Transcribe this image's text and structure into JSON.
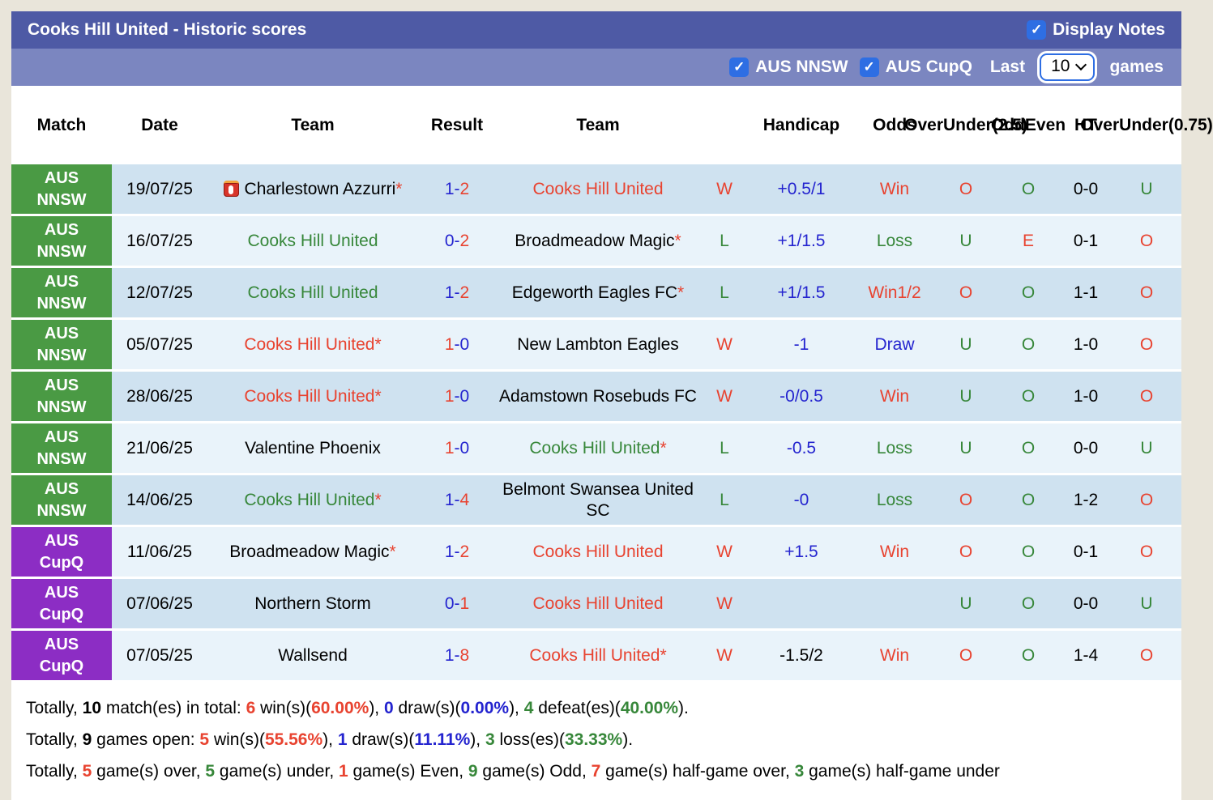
{
  "header": {
    "title": "Cooks Hill United - Historic scores",
    "display_notes_label": "Display Notes",
    "display_notes_checked": true
  },
  "filter": {
    "aus_nnsw_label": "AUS NNSW",
    "aus_nnsw_checked": true,
    "aus_cupq_label": "AUS CupQ",
    "aus_cupq_checked": true,
    "last_label": "Last",
    "games_label": "games",
    "selected_games": "10"
  },
  "colors": {
    "red": "#e84330",
    "green": "#37873a",
    "blue": "#2424cf",
    "badge_green": "#4a9a44",
    "badge_purple": "#8c2dc4",
    "stripe_dark": "#cfe2f0",
    "stripe_light": "#e9f3fa"
  },
  "columns": [
    {
      "lines": [
        "Match"
      ]
    },
    {
      "lines": [
        "Date"
      ]
    },
    {
      "lines": [
        "Team"
      ]
    },
    {
      "lines": [
        "Result"
      ]
    },
    {
      "lines": [
        "Team"
      ]
    },
    {
      "lines": [
        ""
      ]
    },
    {
      "lines": [
        "Handicap"
      ]
    },
    {
      "lines": [
        "Odds"
      ]
    },
    {
      "lines": [
        "Over",
        "Under",
        "(2.5)"
      ]
    },
    {
      "lines": [
        "Odd",
        "Even"
      ]
    },
    {
      "lines": [
        "HT"
      ]
    },
    {
      "lines": [
        "Over",
        "Under",
        "(0.75)"
      ]
    }
  ],
  "rows": [
    {
      "league": "AUS NNSW",
      "league_color": "green",
      "date": "19/07/25",
      "home": {
        "name": "Charlestown Azzurri",
        "star": true,
        "color": "black",
        "icon": "red-card"
      },
      "result": {
        "home": "1",
        "away": "2",
        "home_color": "blue",
        "away_color": "red"
      },
      "away": {
        "name": "Cooks Hill United",
        "star": false,
        "color": "red"
      },
      "wl": {
        "text": "W",
        "color": "red"
      },
      "handicap": {
        "text": "+0.5/1",
        "color": "blue"
      },
      "odds": {
        "text": "Win",
        "color": "red"
      },
      "ou25": {
        "text": "O",
        "color": "red"
      },
      "oddeven": {
        "text": "O",
        "color": "green"
      },
      "ht": "0-0",
      "ou075": {
        "text": "U",
        "color": "green"
      }
    },
    {
      "league": "AUS NNSW",
      "league_color": "green",
      "date": "16/07/25",
      "home": {
        "name": "Cooks Hill United",
        "star": false,
        "color": "green"
      },
      "result": {
        "home": "0",
        "away": "2",
        "home_color": "blue",
        "away_color": "red"
      },
      "away": {
        "name": "Broadmeadow Magic",
        "star": true,
        "color": "black"
      },
      "wl": {
        "text": "L",
        "color": "green"
      },
      "handicap": {
        "text": "+1/1.5",
        "color": "blue"
      },
      "odds": {
        "text": "Loss",
        "color": "green"
      },
      "ou25": {
        "text": "U",
        "color": "green"
      },
      "oddeven": {
        "text": "E",
        "color": "red"
      },
      "ht": "0-1",
      "ou075": {
        "text": "O",
        "color": "red"
      }
    },
    {
      "league": "AUS NNSW",
      "league_color": "green",
      "date": "12/07/25",
      "home": {
        "name": "Cooks Hill United",
        "star": false,
        "color": "green"
      },
      "result": {
        "home": "1",
        "away": "2",
        "home_color": "blue",
        "away_color": "red"
      },
      "away": {
        "name": "Edgeworth Eagles FC",
        "star": true,
        "color": "black"
      },
      "wl": {
        "text": "L",
        "color": "green"
      },
      "handicap": {
        "text": "+1/1.5",
        "color": "blue"
      },
      "odds": {
        "text": "Win1/2",
        "color": "red"
      },
      "ou25": {
        "text": "O",
        "color": "red"
      },
      "oddeven": {
        "text": "O",
        "color": "green"
      },
      "ht": "1-1",
      "ou075": {
        "text": "O",
        "color": "red"
      }
    },
    {
      "league": "AUS NNSW",
      "league_color": "green",
      "date": "05/07/25",
      "home": {
        "name": "Cooks Hill United",
        "star": true,
        "color": "red"
      },
      "result": {
        "home": "1",
        "away": "0",
        "home_color": "red",
        "away_color": "blue"
      },
      "away": {
        "name": "New Lambton Eagles",
        "star": false,
        "color": "black"
      },
      "wl": {
        "text": "W",
        "color": "red"
      },
      "handicap": {
        "text": "-1",
        "color": "blue"
      },
      "odds": {
        "text": "Draw",
        "color": "blue"
      },
      "ou25": {
        "text": "U",
        "color": "green"
      },
      "oddeven": {
        "text": "O",
        "color": "green"
      },
      "ht": "1-0",
      "ou075": {
        "text": "O",
        "color": "red"
      }
    },
    {
      "league": "AUS NNSW",
      "league_color": "green",
      "date": "28/06/25",
      "home": {
        "name": "Cooks Hill United",
        "star": true,
        "color": "red"
      },
      "result": {
        "home": "1",
        "away": "0",
        "home_color": "red",
        "away_color": "blue"
      },
      "away": {
        "name": "Adamstown Rosebuds FC",
        "star": false,
        "color": "black"
      },
      "wl": {
        "text": "W",
        "color": "red"
      },
      "handicap": {
        "text": "-0/0.5",
        "color": "blue"
      },
      "odds": {
        "text": "Win",
        "color": "red"
      },
      "ou25": {
        "text": "U",
        "color": "green"
      },
      "oddeven": {
        "text": "O",
        "color": "green"
      },
      "ht": "1-0",
      "ou075": {
        "text": "O",
        "color": "red"
      }
    },
    {
      "league": "AUS NNSW",
      "league_color": "green",
      "date": "21/06/25",
      "home": {
        "name": "Valentine Phoenix",
        "star": false,
        "color": "black"
      },
      "result": {
        "home": "1",
        "away": "0",
        "home_color": "red",
        "away_color": "blue"
      },
      "away": {
        "name": "Cooks Hill United",
        "star": true,
        "color": "green"
      },
      "wl": {
        "text": "L",
        "color": "green"
      },
      "handicap": {
        "text": "-0.5",
        "color": "blue"
      },
      "odds": {
        "text": "Loss",
        "color": "green"
      },
      "ou25": {
        "text": "U",
        "color": "green"
      },
      "oddeven": {
        "text": "O",
        "color": "green"
      },
      "ht": "0-0",
      "ou075": {
        "text": "U",
        "color": "green"
      }
    },
    {
      "league": "AUS NNSW",
      "league_color": "green",
      "date": "14/06/25",
      "home": {
        "name": "Cooks Hill United",
        "star": true,
        "color": "green"
      },
      "result": {
        "home": "1",
        "away": "4",
        "home_color": "blue",
        "away_color": "red"
      },
      "away": {
        "name": "Belmont Swansea United SC",
        "star": false,
        "color": "black"
      },
      "wl": {
        "text": "L",
        "color": "green"
      },
      "handicap": {
        "text": "-0",
        "color": "blue"
      },
      "odds": {
        "text": "Loss",
        "color": "green"
      },
      "ou25": {
        "text": "O",
        "color": "red"
      },
      "oddeven": {
        "text": "O",
        "color": "green"
      },
      "ht": "1-2",
      "ou075": {
        "text": "O",
        "color": "red"
      }
    },
    {
      "league": "AUS CupQ",
      "league_color": "purple",
      "date": "11/06/25",
      "home": {
        "name": "Broadmeadow Magic",
        "star": true,
        "color": "black"
      },
      "result": {
        "home": "1",
        "away": "2",
        "home_color": "blue",
        "away_color": "red"
      },
      "away": {
        "name": "Cooks Hill United",
        "star": false,
        "color": "red"
      },
      "wl": {
        "text": "W",
        "color": "red"
      },
      "handicap": {
        "text": "+1.5",
        "color": "blue"
      },
      "odds": {
        "text": "Win",
        "color": "red"
      },
      "ou25": {
        "text": "O",
        "color": "red"
      },
      "oddeven": {
        "text": "O",
        "color": "green"
      },
      "ht": "0-1",
      "ou075": {
        "text": "O",
        "color": "red"
      }
    },
    {
      "league": "AUS CupQ",
      "league_color": "purple",
      "date": "07/06/25",
      "home": {
        "name": "Northern Storm",
        "star": false,
        "color": "black"
      },
      "result": {
        "home": "0",
        "away": "1",
        "home_color": "blue",
        "away_color": "red"
      },
      "away": {
        "name": "Cooks Hill United",
        "star": false,
        "color": "red"
      },
      "wl": {
        "text": "W",
        "color": "red"
      },
      "handicap": {
        "text": "",
        "color": "black"
      },
      "odds": {
        "text": "",
        "color": "black"
      },
      "ou25": {
        "text": "U",
        "color": "green"
      },
      "oddeven": {
        "text": "O",
        "color": "green"
      },
      "ht": "0-0",
      "ou075": {
        "text": "U",
        "color": "green"
      }
    },
    {
      "league": "AUS CupQ",
      "league_color": "purple",
      "date": "07/05/25",
      "home": {
        "name": "Wallsend",
        "star": false,
        "color": "black"
      },
      "result": {
        "home": "1",
        "away": "8",
        "home_color": "blue",
        "away_color": "red"
      },
      "away": {
        "name": "Cooks Hill United",
        "star": true,
        "color": "red"
      },
      "wl": {
        "text": "W",
        "color": "red"
      },
      "handicap": {
        "text": "-1.5/2",
        "color": "black"
      },
      "odds": {
        "text": "Win",
        "color": "red"
      },
      "ou25": {
        "text": "O",
        "color": "red"
      },
      "oddeven": {
        "text": "O",
        "color": "green"
      },
      "ht": "1-4",
      "ou075": {
        "text": "O",
        "color": "red"
      }
    }
  ],
  "summary": [
    [
      {
        "t": "Totally, "
      },
      {
        "t": "10",
        "b": true
      },
      {
        "t": " match(es) in total: "
      },
      {
        "t": "6",
        "b": true,
        "c": "red"
      },
      {
        "t": " win(s)("
      },
      {
        "t": "60.00%",
        "b": true,
        "c": "red"
      },
      {
        "t": "), "
      },
      {
        "t": "0",
        "b": true,
        "c": "blue"
      },
      {
        "t": " draw(s)("
      },
      {
        "t": "0.00%",
        "b": true,
        "c": "blue"
      },
      {
        "t": "), "
      },
      {
        "t": "4",
        "b": true,
        "c": "green"
      },
      {
        "t": " defeat(es)("
      },
      {
        "t": "40.00%",
        "b": true,
        "c": "green"
      },
      {
        "t": ")."
      }
    ],
    [
      {
        "t": "Totally, "
      },
      {
        "t": "9",
        "b": true
      },
      {
        "t": " games open: "
      },
      {
        "t": "5",
        "b": true,
        "c": "red"
      },
      {
        "t": " win(s)("
      },
      {
        "t": "55.56%",
        "b": true,
        "c": "red"
      },
      {
        "t": "), "
      },
      {
        "t": "1",
        "b": true,
        "c": "blue"
      },
      {
        "t": " draw(s)("
      },
      {
        "t": "11.11%",
        "b": true,
        "c": "blue"
      },
      {
        "t": "), "
      },
      {
        "t": "3",
        "b": true,
        "c": "green"
      },
      {
        "t": " loss(es)("
      },
      {
        "t": "33.33%",
        "b": true,
        "c": "green"
      },
      {
        "t": ")."
      }
    ],
    [
      {
        "t": "Totally, "
      },
      {
        "t": "5",
        "b": true,
        "c": "red"
      },
      {
        "t": " game(s) over, "
      },
      {
        "t": "5",
        "b": true,
        "c": "green"
      },
      {
        "t": " game(s) under, "
      },
      {
        "t": "1",
        "b": true,
        "c": "red"
      },
      {
        "t": " game(s) Even, "
      },
      {
        "t": "9",
        "b": true,
        "c": "green"
      },
      {
        "t": " game(s) Odd, "
      },
      {
        "t": "7",
        "b": true,
        "c": "red"
      },
      {
        "t": " game(s) half-game over, "
      },
      {
        "t": "3",
        "b": true,
        "c": "green"
      },
      {
        "t": " game(s) half-game under"
      }
    ]
  ]
}
